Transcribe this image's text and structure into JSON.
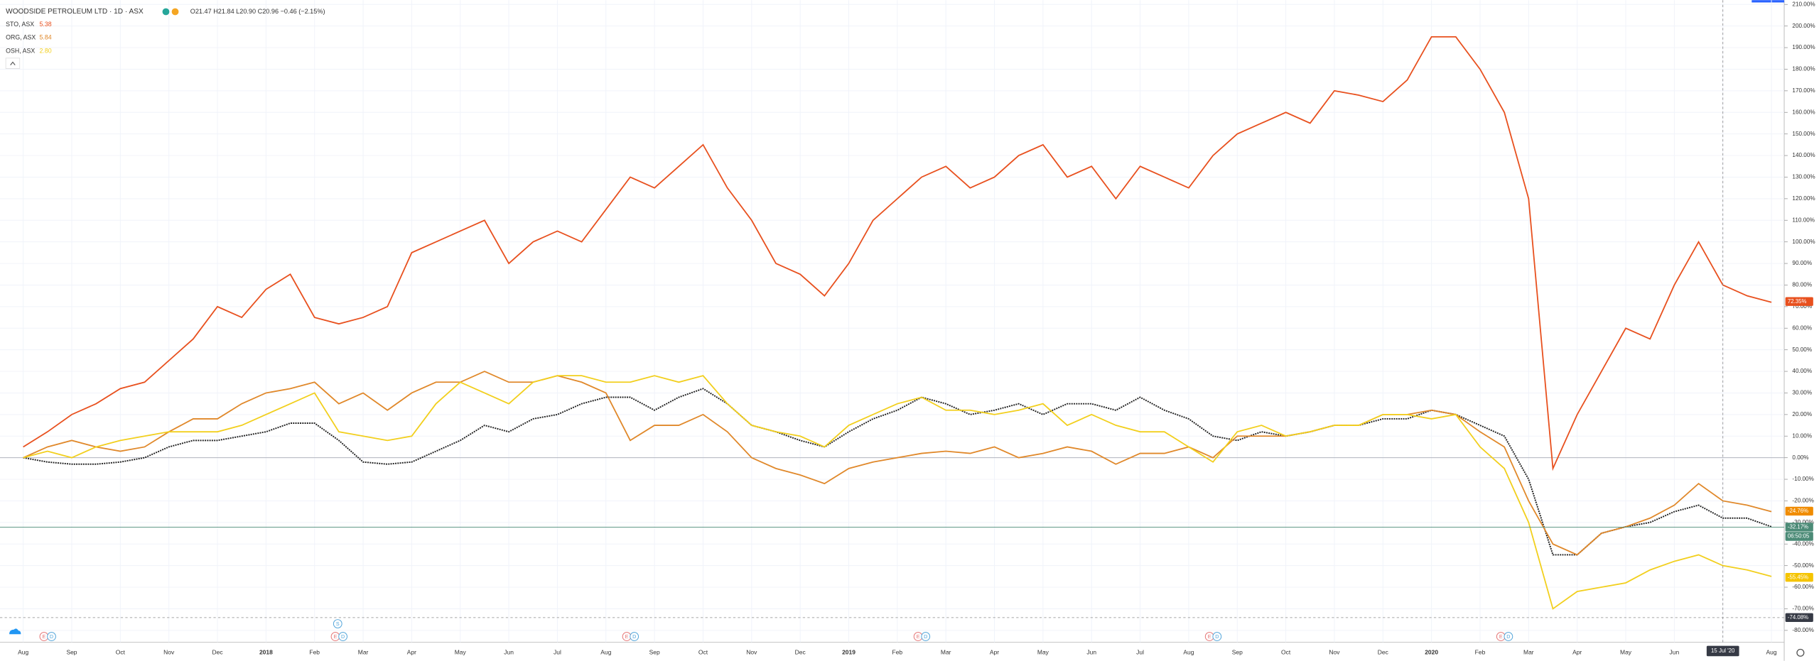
{
  "chart_data": {
    "type": "line",
    "title": "WOODSIDE PETROLEUM LTD · 1D · ASX",
    "ohlc": "O21.47 H21.84 L20.90 C20.96 −0.46 (−2.15%)",
    "categories": [
      "Aug",
      null,
      "Sep",
      null,
      "Oct",
      null,
      "Nov",
      null,
      "Dec",
      null,
      "2018",
      null,
      "Feb",
      null,
      "Mar",
      null,
      "Apr",
      null,
      "May",
      null,
      "Jun",
      null,
      "Jul",
      null,
      "Aug",
      null,
      "Sep",
      null,
      "Oct",
      null,
      "Nov",
      null,
      "Dec",
      null,
      "2019",
      null,
      "Feb",
      null,
      "Mar",
      null,
      "Apr",
      null,
      "May",
      null,
      "Jun",
      null,
      "Jul",
      null,
      "Aug",
      null,
      "Sep",
      null,
      "Oct",
      null,
      "Nov",
      null,
      "Dec",
      null,
      "2020",
      null,
      "Feb",
      null,
      "Mar",
      null,
      "Apr",
      null,
      "May",
      null,
      "Jun",
      null,
      "Jul",
      null,
      "Aug"
    ],
    "series": [
      {
        "name": "WOODSIDE PETROLEUM LTD",
        "color": "#222222",
        "badge_color": "#4c8b77",
        "dashed": true,
        "last": {
          "value": -32.17,
          "label": "-32.17%"
        },
        "values": [
          0,
          -2,
          -3,
          -3,
          -2,
          0,
          5,
          8,
          8,
          10,
          12,
          16,
          16,
          8,
          -2,
          -3,
          -2,
          3,
          8,
          15,
          12,
          18,
          20,
          25,
          28,
          28,
          22,
          28,
          32,
          25,
          15,
          12,
          8,
          5,
          12,
          18,
          22,
          28,
          25,
          20,
          22,
          25,
          20,
          25,
          25,
          22,
          28,
          22,
          18,
          10,
          8,
          12,
          10,
          12,
          15,
          15,
          18,
          18,
          22,
          20,
          15,
          10,
          -10,
          -45,
          -45,
          -35,
          -32,
          -30,
          -25,
          -22,
          -28,
          -28,
          -32
        ]
      },
      {
        "name": "STO, ASX",
        "price": "5.38",
        "color": "#e8501e",
        "badge_color": "#e8501e",
        "last": {
          "value": 72.35,
          "label": "72.35%"
        },
        "values": [
          5,
          12,
          20,
          25,
          32,
          35,
          45,
          55,
          70,
          65,
          78,
          85,
          65,
          62,
          65,
          70,
          95,
          100,
          105,
          110,
          90,
          100,
          105,
          100,
          115,
          130,
          125,
          135,
          145,
          125,
          110,
          90,
          85,
          75,
          90,
          110,
          120,
          130,
          135,
          125,
          130,
          140,
          145,
          130,
          135,
          120,
          135,
          130,
          125,
          140,
          150,
          155,
          160,
          155,
          170,
          168,
          165,
          175,
          195,
          195,
          180,
          160,
          120,
          -5,
          20,
          40,
          60,
          55,
          80,
          100,
          80,
          75,
          72
        ]
      },
      {
        "name": "ORG, ASX",
        "price": "5.84",
        "color": "#e0882a",
        "badge_color": "#f08c00",
        "last": {
          "value": -24.76,
          "label": "-24.76%"
        },
        "values": [
          0,
          5,
          8,
          5,
          3,
          5,
          12,
          18,
          18,
          25,
          30,
          32,
          35,
          25,
          30,
          22,
          30,
          35,
          35,
          40,
          35,
          35,
          38,
          35,
          30,
          8,
          15,
          15,
          20,
          12,
          0,
          -5,
          -8,
          -12,
          -5,
          -2,
          0,
          2,
          3,
          2,
          5,
          0,
          2,
          5,
          3,
          -3,
          2,
          2,
          5,
          0,
          10,
          10,
          10,
          12,
          15,
          15,
          20,
          20,
          22,
          20,
          12,
          5,
          -20,
          -40,
          -45,
          -35,
          -32,
          -28,
          -22,
          -12,
          -20,
          -22,
          -25
        ]
      },
      {
        "name": "OSH, ASX",
        "price": "2.80",
        "color": "#f2cf1d",
        "badge_color": "#f5c400",
        "last": {
          "value": -55.45,
          "label": "-55.45%"
        },
        "values": [
          0,
          3,
          0,
          5,
          8,
          10,
          12,
          12,
          12,
          15,
          20,
          25,
          30,
          12,
          10,
          8,
          10,
          25,
          35,
          30,
          25,
          35,
          38,
          38,
          35,
          35,
          38,
          35,
          38,
          25,
          15,
          12,
          10,
          5,
          15,
          20,
          25,
          28,
          22,
          22,
          20,
          22,
          25,
          15,
          20,
          15,
          12,
          12,
          5,
          -2,
          12,
          15,
          10,
          12,
          15,
          15,
          20,
          20,
          18,
          20,
          5,
          -5,
          -30,
          -70,
          -62,
          -60,
          -58,
          -52,
          -48,
          -45,
          -50,
          -52,
          -55
        ]
      }
    ],
    "countdown": "06:50:05",
    "crosshair": {
      "y": {
        "value": -74.08,
        "label": "-74.08%"
      },
      "x": {
        "at": 70,
        "label": "15 Jul '20"
      }
    },
    "events": [
      {
        "at": 1,
        "text": "E"
      },
      {
        "at": 1,
        "text": "D"
      },
      {
        "at": 13,
        "text": "S"
      },
      {
        "at": 13,
        "text": "E"
      },
      {
        "at": 13,
        "text": "D"
      },
      {
        "at": 25,
        "text": "E"
      },
      {
        "at": 25,
        "text": "D"
      },
      {
        "at": 37,
        "text": "E"
      },
      {
        "at": 37,
        "text": "D"
      },
      {
        "at": 49,
        "text": "E"
      },
      {
        "at": 49,
        "text": "D"
      },
      {
        "at": 61,
        "text": "E"
      },
      {
        "at": 61,
        "text": "D"
      }
    ],
    "ylim": [
      -85,
      212
    ],
    "yticks": [
      {
        "value": -80,
        "label": "-80.00%"
      },
      {
        "value": -70,
        "label": "-70.00%"
      },
      {
        "value": -60,
        "label": "-60.00%"
      },
      {
        "value": -50,
        "label": "-50.00%"
      },
      {
        "value": -40,
        "label": "-40.00%"
      },
      {
        "value": -30,
        "label": "-30.00%"
      },
      {
        "value": -20,
        "label": "-20.00%"
      },
      {
        "value": -10,
        "label": "-10.00%"
      },
      {
        "value": 0,
        "label": "0.00%"
      },
      {
        "value": 10,
        "label": "10.00%"
      },
      {
        "value": 20,
        "label": "20.00%"
      },
      {
        "value": 30,
        "label": "30.00%"
      },
      {
        "value": 40,
        "label": "40.00%"
      },
      {
        "value": 50,
        "label": "50.00%"
      },
      {
        "value": 60,
        "label": "60.00%"
      },
      {
        "value": 70,
        "label": "70.00%"
      },
      {
        "value": 80,
        "label": "80.00%"
      },
      {
        "value": 90,
        "label": "90.00%"
      },
      {
        "value": 100,
        "label": "100.00%"
      },
      {
        "value": 110,
        "label": "110.00%"
      },
      {
        "value": 120,
        "label": "120.00%"
      },
      {
        "value": 130,
        "label": "130.00%"
      },
      {
        "value": 140,
        "label": "140.00%"
      },
      {
        "value": 150,
        "label": "150.00%"
      },
      {
        "value": 160,
        "label": "160.00%"
      },
      {
        "value": 170,
        "label": "170.00%"
      },
      {
        "value": 180,
        "label": "180.00%"
      },
      {
        "value": 190,
        "label": "190.00%"
      },
      {
        "value": 200,
        "label": "200.00%"
      },
      {
        "value": 210,
        "label": "210.00%"
      }
    ],
    "grid": true
  }
}
